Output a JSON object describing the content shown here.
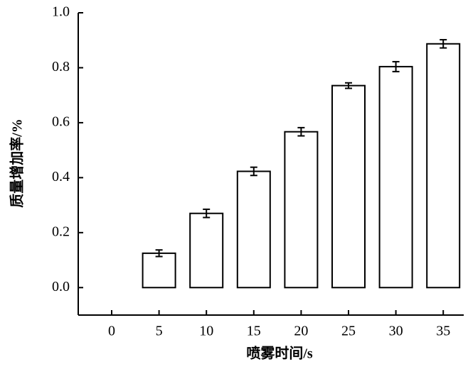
{
  "chart_data": {
    "type": "bar",
    "x_label": "喷雾时间/s",
    "y_label": "质量增加率/%",
    "categories": [
      "0",
      "5",
      "10",
      "15",
      "20",
      "25",
      "30",
      "35"
    ],
    "values": [
      0,
      0.125,
      0.27,
      0.423,
      0.567,
      0.735,
      0.804,
      0.887
    ],
    "errors": [
      null,
      0.012,
      0.015,
      0.015,
      0.015,
      0.01,
      0.018,
      0.015
    ],
    "color": "#ffffff",
    "ylim": [
      -0.1,
      1.0
    ],
    "yticks": [
      {
        "value": 0,
        "label": "0.0"
      },
      {
        "value": 0.2,
        "label": "0.2"
      },
      {
        "value": 0.4,
        "label": "0.4"
      },
      {
        "value": 0.6,
        "label": "0.6"
      },
      {
        "value": 0.8,
        "label": "0.8"
      },
      {
        "value": 1.0,
        "label": "1.0"
      }
    ],
    "grid": false
  }
}
